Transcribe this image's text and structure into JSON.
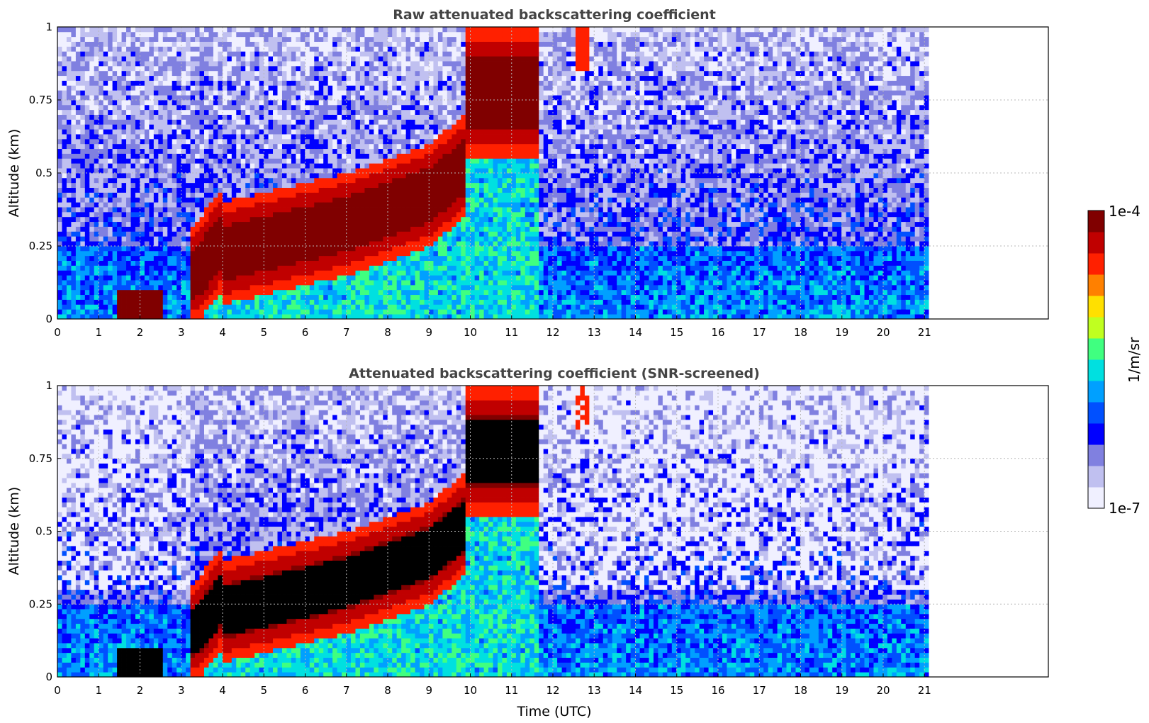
{
  "chart_data": [
    {
      "type": "heatmap",
      "title": "Raw attenuated backscattering coefficient",
      "xlabel": "",
      "ylabel": "Altitude (km)",
      "xlim": [
        0,
        24
      ],
      "ylim": [
        0,
        1
      ],
      "data_extent_x": [
        0,
        21.1
      ],
      "xticks": [
        "0",
        "1",
        "2",
        "3",
        "4",
        "5",
        "6",
        "7",
        "8",
        "9",
        "10",
        "11",
        "12",
        "13",
        "14",
        "15",
        "16",
        "17",
        "18",
        "19",
        "20",
        "21"
      ],
      "yticks": [
        "0",
        "0.25",
        "0.5",
        "0.75",
        "1"
      ],
      "grid": true,
      "features": [
        {
          "description": "low boundary layer",
          "x": [
            0,
            21.1
          ],
          "y": [
            0,
            0.25
          ],
          "level": "low"
        },
        {
          "description": "fog layer",
          "x": [
            1.4,
            2.5
          ],
          "y": [
            0.0,
            0.1
          ],
          "level": "max"
        },
        {
          "description": "rising cloud layer",
          "x": [
            3.2,
            9.8
          ],
          "y": [
            0.0,
            0.7
          ],
          "level": "high"
        },
        {
          "description": "cloud top",
          "x": [
            9.8,
            11.7
          ],
          "y": [
            0.6,
            1.0
          ],
          "level": "max"
        },
        {
          "description": "residual",
          "x": [
            12.6,
            12.9
          ],
          "y": [
            0.85,
            1.0
          ],
          "level": "high"
        }
      ]
    },
    {
      "type": "heatmap",
      "title": "Attenuated backscattering coefficient (SNR-screened)",
      "xlabel": "Time (UTC)",
      "ylabel": "Altitude (km)",
      "xlim": [
        0,
        24
      ],
      "ylim": [
        0,
        1
      ],
      "data_extent_x": [
        0,
        21.1
      ],
      "xticks": [
        "0",
        "1",
        "2",
        "3",
        "4",
        "5",
        "6",
        "7",
        "8",
        "9",
        "10",
        "11",
        "12",
        "13",
        "14",
        "15",
        "16",
        "17",
        "18",
        "19",
        "20",
        "21"
      ],
      "yticks": [
        "0",
        "0.25",
        "0.5",
        "0.75",
        "1"
      ],
      "grid": true,
      "features": [
        {
          "description": "screened boundary layer",
          "x": [
            0,
            21.1
          ],
          "y": [
            0,
            0.25
          ],
          "level": "low"
        },
        {
          "description": "fog layer saturated",
          "x": [
            1.4,
            2.5
          ],
          "y": [
            0.0,
            0.1
          ],
          "level": "saturated"
        },
        {
          "description": "rising cloud layer",
          "x": [
            3.2,
            9.8
          ],
          "y": [
            0.0,
            0.7
          ],
          "level": "saturated"
        },
        {
          "description": "cloud top",
          "x": [
            9.8,
            11.7
          ],
          "y": [
            0.6,
            1.0
          ],
          "level": "saturated"
        }
      ]
    }
  ],
  "colorbar": {
    "label": "1/m/sr",
    "max_label": "1e-4",
    "min_label": "1e-7",
    "colors": [
      "#f0f0ff",
      "#c0c0f0",
      "#8080e0",
      "#0000ff",
      "#0050ff",
      "#00a0ff",
      "#00e0e0",
      "#40ff80",
      "#c0ff20",
      "#ffe000",
      "#ff8000",
      "#ff2000",
      "#c00000",
      "#800000"
    ],
    "saturated_color": "#000000"
  }
}
